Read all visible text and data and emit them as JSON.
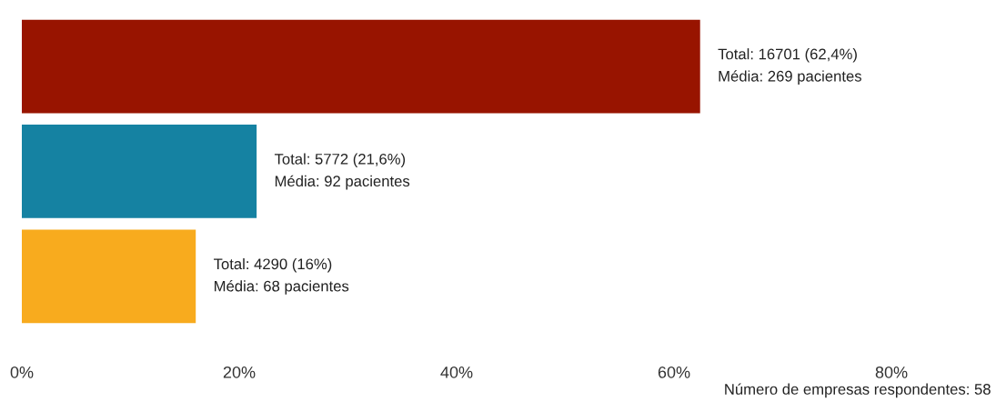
{
  "chart_data": {
    "type": "bar",
    "orientation": "horizontal",
    "categories": [
      null,
      null,
      null
    ],
    "values": [
      62.4,
      21.6,
      16
    ],
    "colors": [
      "#981400",
      "#1582a2",
      "#f8ab1e"
    ],
    "value_labels": [
      "Total: 16701 (62,4%)\nMédia: 269 pacientes",
      "Total: 5772 (21,6%)\nMédia: 92 pacientes",
      "Total: 4290 (16%)\nMédia: 68 pacientes"
    ],
    "xlim": [
      0,
      80
    ],
    "xticks": [
      {
        "value": 0,
        "label": "0%"
      },
      {
        "value": 20,
        "label": "20%"
      },
      {
        "value": 40,
        "label": "40%"
      },
      {
        "value": 60,
        "label": "60%"
      },
      {
        "value": 80,
        "label": "80%"
      }
    ],
    "tick_labels": "x",
    "grid": false,
    "legend": false,
    "annotations": [
      "Número de empresas respondentes: 58"
    ]
  }
}
